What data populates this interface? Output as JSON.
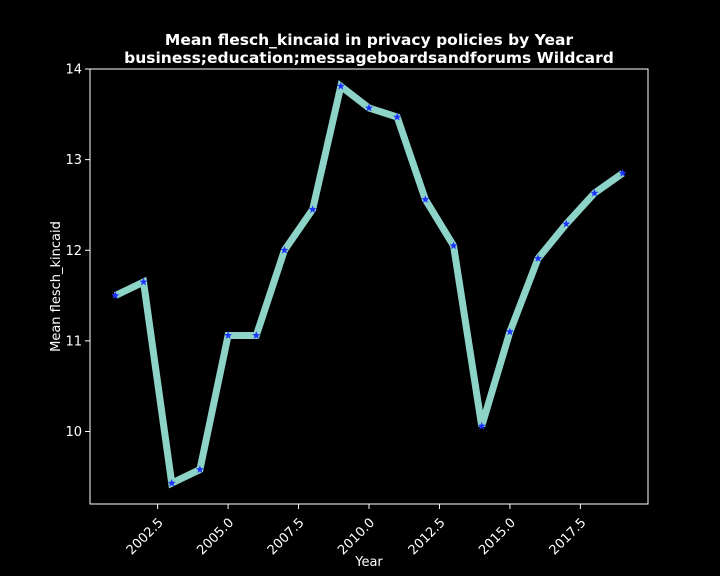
{
  "chart_data": {
    "type": "line",
    "title": "Mean flesch_kincaid in privacy policies by Year",
    "subtitle": "business;education;messageboardsandforums Wildcard",
    "xlabel": "Year",
    "ylabel": "Mean flesch_kincaid",
    "xlim": [
      2000.1,
      2019.9
    ],
    "ylim": [
      9.2,
      14.0
    ],
    "x_ticks": [
      2002.5,
      2005.0,
      2007.5,
      2010.0,
      2012.5,
      2015.0,
      2017.5
    ],
    "x_tick_labels": [
      "2002.5",
      "2005.0",
      "2007.5",
      "2010.0",
      "2012.5",
      "2015.0",
      "2017.5"
    ],
    "y_ticks": [
      10,
      11,
      12,
      13,
      14
    ],
    "y_tick_labels": [
      "10",
      "11",
      "12",
      "13",
      "14"
    ],
    "grid": false,
    "x": [
      2001,
      2002,
      2003,
      2004,
      2005,
      2006,
      2007,
      2008,
      2009,
      2010,
      2011,
      2012,
      2013,
      2014,
      2015,
      2016,
      2017,
      2018,
      2019
    ],
    "series": [
      {
        "values": [
          11.5,
          11.65,
          9.43,
          9.58,
          11.06,
          11.06,
          12.0,
          12.45,
          13.81,
          13.57,
          13.47,
          12.56,
          12.05,
          10.06,
          11.1,
          11.91,
          12.29,
          12.63,
          12.85
        ],
        "line_color": "#8dd3c7",
        "marker_color": "#1f33ff",
        "marker": "star"
      }
    ]
  }
}
